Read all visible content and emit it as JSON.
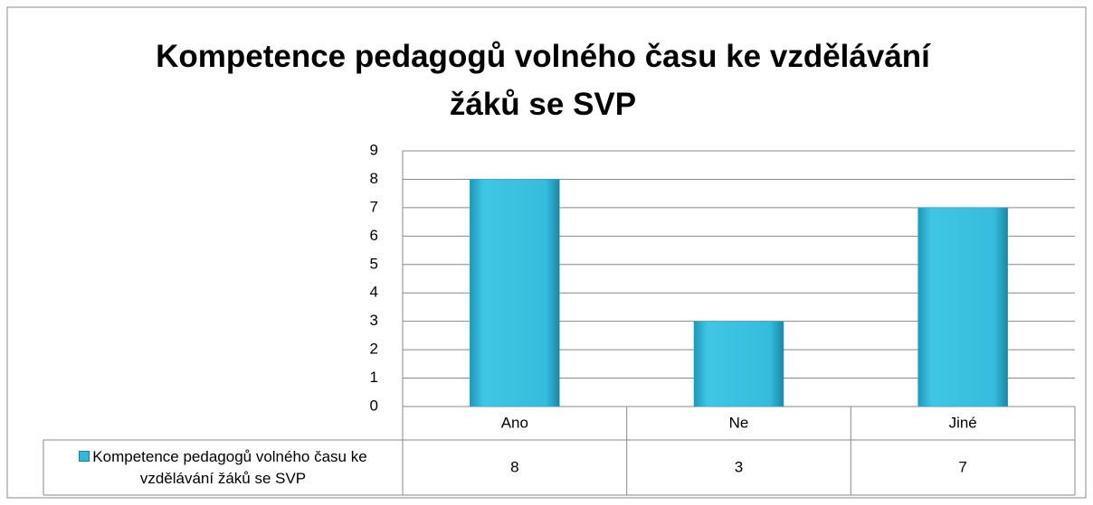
{
  "chart_data": {
    "type": "bar",
    "title": "Kompetence pedagogů volného času ke vzdělávání žáků se SVP",
    "categories": [
      "Ano",
      "Ne",
      "Jiné"
    ],
    "series": [
      {
        "name": "Kompetence pedagogů volného času ke vzdělávání žáků se SVP",
        "color": "#31b6d9",
        "values": [
          8,
          3,
          7
        ]
      }
    ],
    "ylim": [
      0,
      9
    ],
    "yticks": [
      0,
      1,
      2,
      3,
      4,
      5,
      6,
      7,
      8,
      9
    ],
    "grid": true,
    "data_table": true
  }
}
